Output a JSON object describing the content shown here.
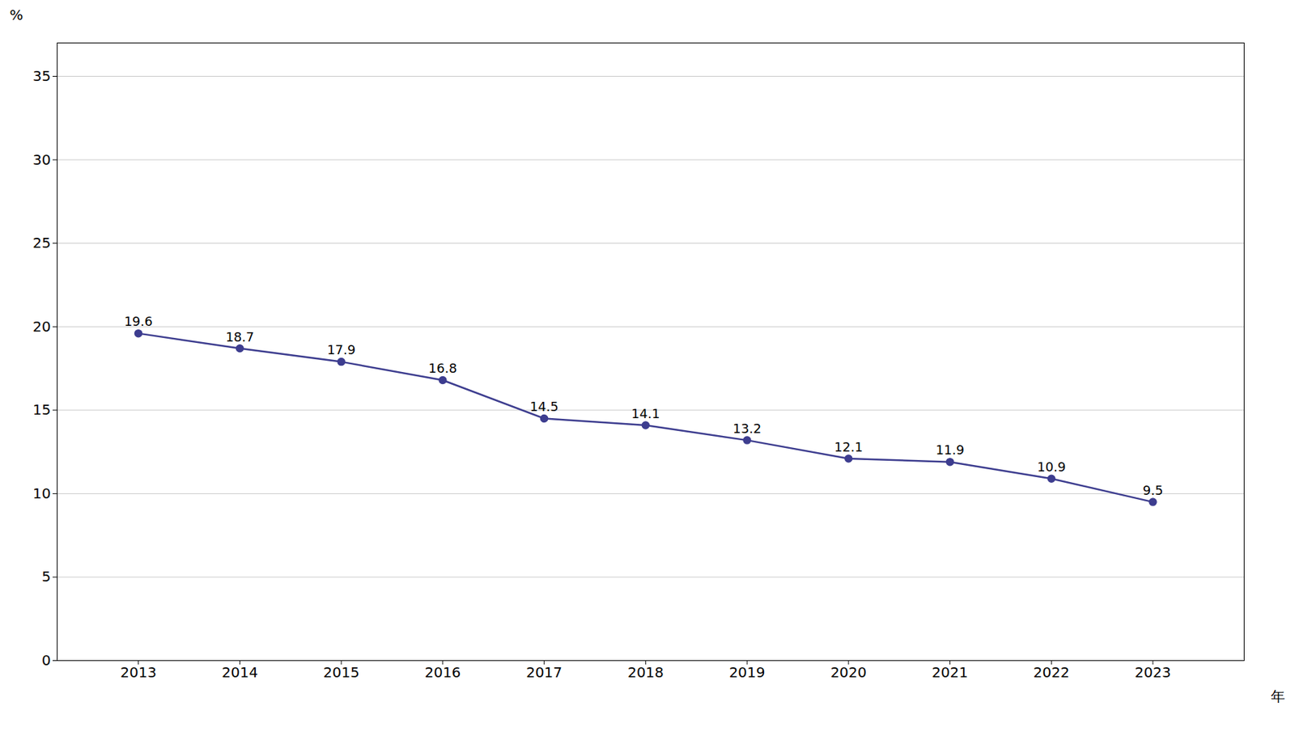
{
  "chart_data": {
    "type": "line",
    "x": [
      2013,
      2014,
      2015,
      2016,
      2017,
      2018,
      2019,
      2020,
      2021,
      2022,
      2023
    ],
    "values": [
      19.6,
      18.7,
      17.9,
      16.8,
      14.5,
      14.1,
      13.2,
      12.1,
      11.9,
      10.9,
      9.5
    ],
    "color": "#3d3d8f",
    "marker": "circle",
    "xlabel": "年",
    "ylabel": "%",
    "xlim": [
      2012.2,
      2023.9
    ],
    "xticks": [
      2013,
      2014,
      2015,
      2016,
      2017,
      2018,
      2019,
      2020,
      2021,
      2022,
      2023
    ],
    "ylim": [
      0,
      37
    ],
    "yticks": [
      0,
      5,
      10,
      15,
      20,
      25,
      30,
      35
    ],
    "grid": "y",
    "data_labels": true
  }
}
